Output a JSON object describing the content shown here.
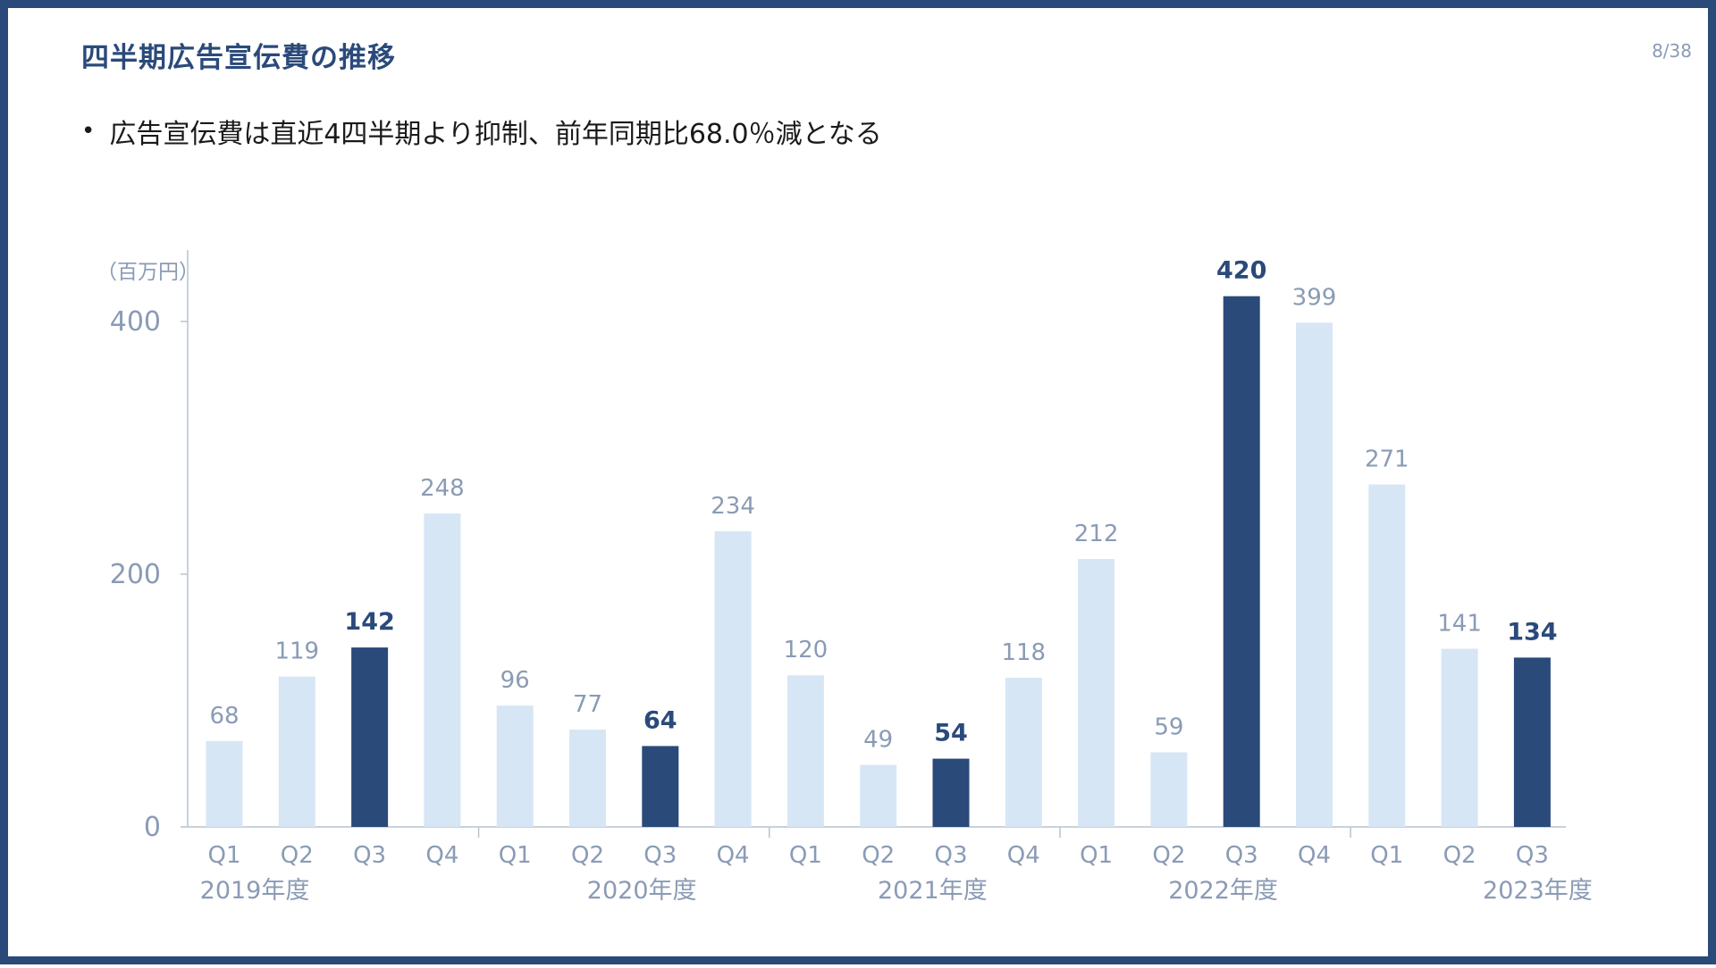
{
  "slide": {
    "title": "四半期広告宣伝費の推移",
    "page_number": "8/38",
    "bullet": "広告宣伝費は直近4四半期より抑制、前年同期比68.0％減となる"
  },
  "colors": {
    "accent": "#2a4a7a",
    "bar_light": "#d6e6f5",
    "bar_dark": "#2a4a7a",
    "label_muted": "#8a9bb5"
  },
  "chart_data": {
    "type": "bar",
    "unit_label": "（百万円）",
    "ylim": [
      0,
      420
    ],
    "yticks": [
      0,
      200,
      400
    ],
    "grid": false,
    "legend": "none",
    "categories": [
      "Q1",
      "Q2",
      "Q3",
      "Q4",
      "Q1",
      "Q2",
      "Q3",
      "Q4",
      "Q1",
      "Q2",
      "Q3",
      "Q4",
      "Q1",
      "Q2",
      "Q3",
      "Q4",
      "Q1",
      "Q2",
      "Q3"
    ],
    "values": [
      68,
      119,
      142,
      248,
      96,
      77,
      64,
      234,
      120,
      49,
      54,
      118,
      212,
      59,
      420,
      399,
      271,
      141,
      134
    ],
    "highlighted": [
      false,
      false,
      true,
      false,
      false,
      false,
      true,
      false,
      false,
      false,
      true,
      false,
      false,
      false,
      true,
      false,
      false,
      false,
      true
    ],
    "year_groups": [
      {
        "label": "2019年度",
        "start": 0,
        "end": 3
      },
      {
        "label": "2020年度",
        "start": 4,
        "end": 7
      },
      {
        "label": "2021年度",
        "start": 8,
        "end": 11
      },
      {
        "label": "2022年度",
        "start": 12,
        "end": 15
      },
      {
        "label": "2023年度",
        "start": 16,
        "end": 18
      }
    ]
  }
}
